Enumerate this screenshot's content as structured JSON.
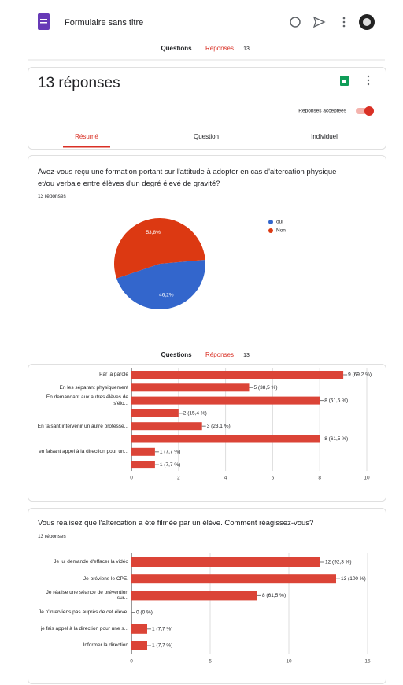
{
  "header": {
    "title": "Formulaire sans titre"
  },
  "tabs": {
    "questions": "Questions",
    "responses": "Réponses",
    "count": "13"
  },
  "tabs_repeat": {
    "questions": "Questions",
    "responses": "Réponses",
    "count": "13"
  },
  "summary": {
    "title": "13 réponses",
    "accepting": "Réponses acceptées",
    "views": [
      "Résumé",
      "Question",
      "Individuel"
    ]
  },
  "chart_data": [
    {
      "type": "pie",
      "title": "Avez-vous reçu une formation portant sur l'attitude à adopter en cas d'altercation physique et/ou verbale entre élèves d'un degré élevé de gravité?",
      "subtitle": "13 réponses",
      "categories": [
        "oui",
        "Non"
      ],
      "values": [
        46.2,
        53.8
      ],
      "value_labels": [
        "46,2%",
        "53,8%"
      ],
      "colors": [
        "#3366cc",
        "#dc3912"
      ],
      "legend": "right"
    },
    {
      "type": "bar",
      "orientation": "horizontal",
      "categories": [
        "Par la parole",
        "En les séparant physiquement",
        "En demandant aux autres élèves de s'élo...",
        null,
        "En faisant intervenir un autre professe...",
        null,
        "en faisant appel à la direction pour un...",
        null
      ],
      "values": [
        9,
        5,
        8,
        2,
        3,
        8,
        1,
        1
      ],
      "value_labels": [
        "9 (69,2 %)",
        "5 (38,5 %)",
        "8 (61,5 %)",
        "2 (15,4 %)",
        "3 (23,1 %)",
        "8 (61,5 %)",
        "1 (7,7 %)",
        "1 (7,7 %)"
      ],
      "color": "#db4437",
      "xlim": [
        0,
        10
      ],
      "xticks": [
        0,
        2,
        4,
        6,
        8,
        10
      ],
      "grid": true
    },
    {
      "type": "bar",
      "orientation": "horizontal",
      "title": "Vous réalisez que l'altercation a été filmée par un élève. Comment réagissez-vous?",
      "subtitle": "13 réponses",
      "categories": [
        "Je lui demande d'effacer la vidéo",
        "Je préviens le CPE.",
        "Je réalise une séance de prévention sur...",
        "Je n'interviens pas auprès de cet élève.",
        "je fais appel à la direction pour une s...",
        "Informer la direction"
      ],
      "values": [
        12,
        13,
        8,
        0,
        1,
        1
      ],
      "value_labels": [
        "12 (92,3 %)",
        "13 (100 %)",
        "8 (61,5 %)",
        "0 (0 %)",
        "1 (7,7 %)",
        "1 (7,7 %)"
      ],
      "color": "#db4437",
      "xlim": [
        0,
        15
      ],
      "xticks": [
        0,
        5,
        10,
        15
      ],
      "grid": true
    }
  ]
}
